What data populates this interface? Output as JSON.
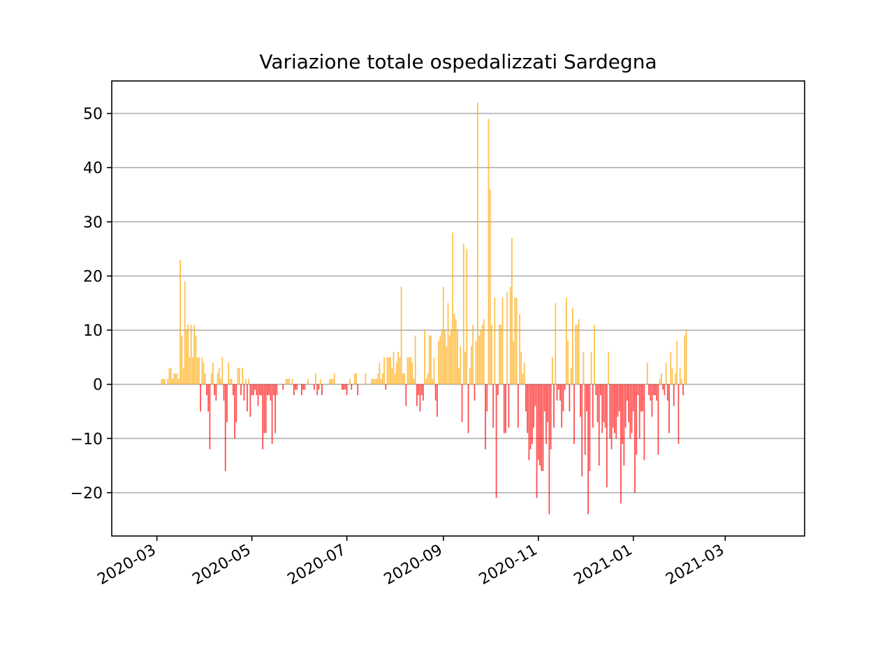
{
  "chart_data": {
    "type": "bar",
    "title": "Variazione totale ospedalizzati Sardegna",
    "xlabel": "",
    "ylabel": "",
    "x_range": [
      "2020-02-01",
      "2021-04-21"
    ],
    "ylim": [
      -28,
      56
    ],
    "y_ticks": [
      {
        "value": -20,
        "label": "−20"
      },
      {
        "value": -10,
        "label": "−10"
      },
      {
        "value": 0,
        "label": "0"
      },
      {
        "value": 10,
        "label": "10"
      },
      {
        "value": 20,
        "label": "20"
      },
      {
        "value": 30,
        "label": "30"
      },
      {
        "value": 40,
        "label": "40"
      },
      {
        "value": 50,
        "label": "50"
      }
    ],
    "x_ticks": [
      {
        "date": "2020-03-01",
        "label": "2020-03"
      },
      {
        "date": "2020-05-01",
        "label": "2020-05"
      },
      {
        "date": "2020-07-01",
        "label": "2020-07"
      },
      {
        "date": "2020-09-01",
        "label": "2020-09"
      },
      {
        "date": "2020-11-01",
        "label": "2020-11"
      },
      {
        "date": "2021-01-01",
        "label": "2021-01"
      },
      {
        "date": "2021-03-01",
        "label": "2021-03"
      }
    ],
    "grid": "y",
    "colors": {
      "positive": "#ffa500",
      "negative": "#ff0000",
      "grid": "#b0b0b0",
      "axis": "#000000"
    },
    "start_date": "2020-02-24",
    "values": [
      0,
      0,
      0,
      0,
      0,
      0,
      0,
      0,
      0,
      1,
      1,
      1,
      0,
      1,
      3,
      3,
      1,
      2,
      2,
      2,
      1,
      23,
      9,
      3,
      19,
      10,
      11,
      5,
      11,
      5,
      11,
      9,
      5,
      5,
      -5,
      5,
      4,
      2,
      -2,
      -5,
      -12,
      2,
      4,
      -2,
      -3,
      2,
      3,
      1,
      5,
      -3,
      -16,
      -7,
      4,
      1,
      1,
      -2,
      -10,
      -7,
      3,
      3,
      -2,
      3,
      -3,
      1,
      -5,
      1,
      -6,
      -2,
      -2,
      -1,
      -2,
      -4,
      -2,
      -2,
      -12,
      -9,
      -9,
      -2,
      -2,
      -3,
      -11,
      -2,
      -9,
      -2,
      0,
      0,
      0,
      -1,
      0,
      1,
      1,
      1,
      0,
      1,
      -2,
      -1,
      -1,
      0,
      0,
      -2,
      -1,
      -1,
      0,
      1,
      0,
      0,
      0,
      -1,
      2,
      -2,
      -1,
      1,
      -2,
      0,
      0,
      0,
      0,
      1,
      1,
      1,
      2,
      0,
      0,
      0,
      0,
      -1,
      -1,
      -1,
      -2,
      0,
      1,
      -1,
      0,
      2,
      2,
      -2,
      0,
      0,
      0,
      0,
      2,
      0,
      0,
      0,
      1,
      1,
      1,
      1,
      2,
      4,
      1,
      2,
      5,
      -1,
      5,
      5,
      5,
      3,
      6,
      2,
      4,
      6,
      5,
      18,
      2,
      2,
      -4,
      5,
      5,
      5,
      4,
      1,
      9,
      -4,
      -2,
      -5,
      -2,
      -3,
      10,
      1,
      2,
      9,
      9,
      1,
      5,
      -3,
      -6,
      8,
      9,
      10,
      18,
      10,
      7,
      15,
      9,
      10,
      28,
      13,
      12,
      10,
      3,
      7,
      -7,
      26,
      6,
      25,
      -9,
      3,
      7,
      11,
      -3,
      8,
      52,
      9,
      10,
      11,
      12,
      -12,
      -5,
      49,
      36,
      11,
      -8,
      16,
      -21,
      -2,
      11,
      11,
      16,
      -9,
      -9,
      17,
      -8,
      18,
      27,
      8,
      16,
      16,
      -8,
      13,
      6,
      2,
      4,
      -5,
      -9,
      -14,
      -12,
      -11,
      -8,
      -4,
      -21,
      -14,
      -15,
      -16,
      -16,
      -5,
      -11,
      -7,
      -24,
      -12,
      5,
      -8,
      15,
      -3,
      -1,
      -3,
      -8,
      -5,
      -1,
      16,
      8,
      -5,
      3,
      14,
      -11,
      11,
      11,
      12,
      -6,
      -17,
      6,
      -13,
      -5,
      -24,
      -16,
      6,
      -8,
      11,
      -2,
      -7,
      -15,
      -2,
      -9,
      -7,
      -8,
      -19,
      6,
      -10,
      -12,
      -8,
      -9,
      -10,
      -6,
      -5,
      -22,
      -11,
      -15,
      -8,
      -3,
      -7,
      -10,
      -9,
      -5,
      -20,
      -13,
      -2,
      -10,
      -5,
      -5,
      -14,
      0,
      4,
      -2,
      -3,
      -6,
      -2,
      -2,
      -3,
      -13,
      1,
      2,
      -1,
      -2,
      4,
      -3,
      -9,
      6,
      3,
      -4,
      2,
      8,
      -11,
      3,
      1,
      -2,
      9,
      10
    ]
  }
}
